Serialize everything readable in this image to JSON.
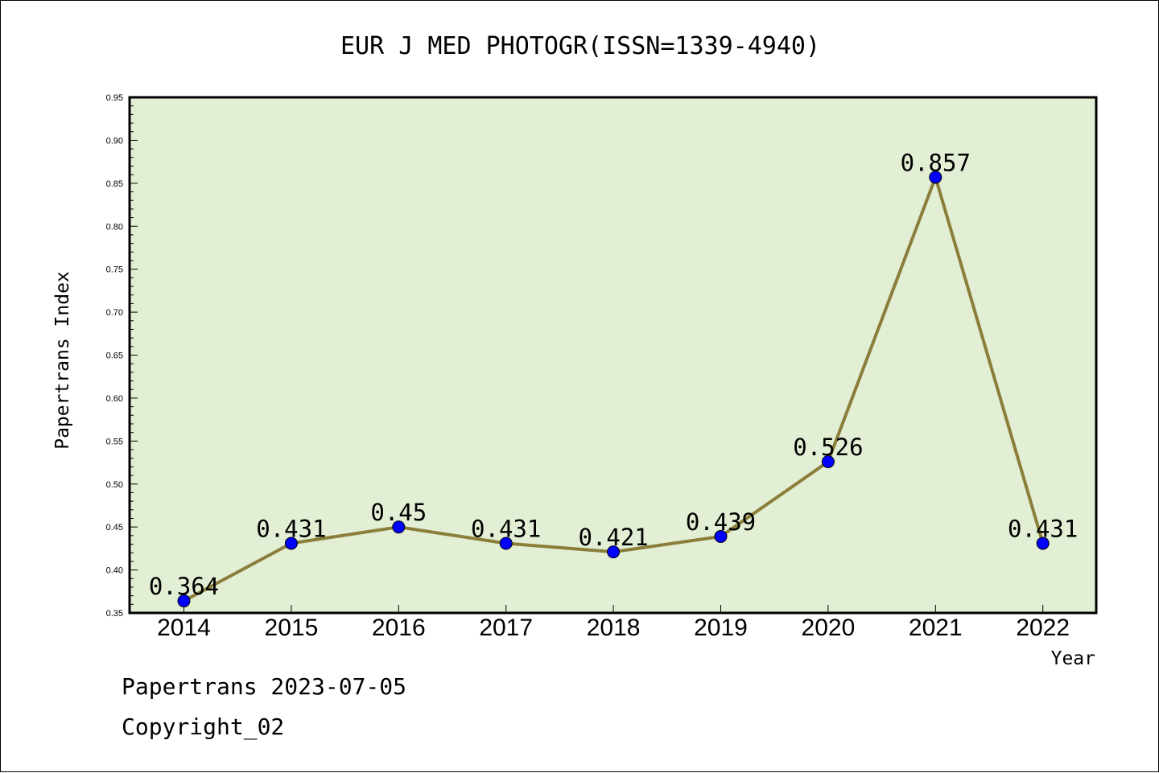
{
  "chart_data": {
    "type": "line",
    "title": "EUR J MED PHOTOGR(ISSN=1339-4940)",
    "xlabel": "Year",
    "ylabel": "Papertrans Index",
    "categories": [
      "2014",
      "2015",
      "2016",
      "2017",
      "2018",
      "2019",
      "2020",
      "2021",
      "2022"
    ],
    "series": [
      {
        "values": [
          0.364,
          0.431,
          0.45,
          0.431,
          0.421,
          0.439,
          0.526,
          0.857,
          0.431
        ],
        "labels": [
          "0.364",
          "0.431",
          "0.45",
          "0.431",
          "0.421",
          "0.439",
          "0.526",
          "0.857",
          "0.431"
        ]
      }
    ],
    "ylim": [
      0.35,
      0.95
    ],
    "yticks": [
      "0.35",
      "0.40",
      "0.45",
      "0.50",
      "0.55",
      "0.60",
      "0.65",
      "0.70",
      "0.75",
      "0.80",
      "0.85",
      "0.90",
      "0.95"
    ],
    "grid": false,
    "colors": {
      "plot_background": "#e2efd5",
      "line": "#8b7e3a",
      "marker": "#0000ff"
    }
  },
  "footer": {
    "line1": "Papertrans 2023-07-05",
    "line2": "Copyright_02"
  }
}
